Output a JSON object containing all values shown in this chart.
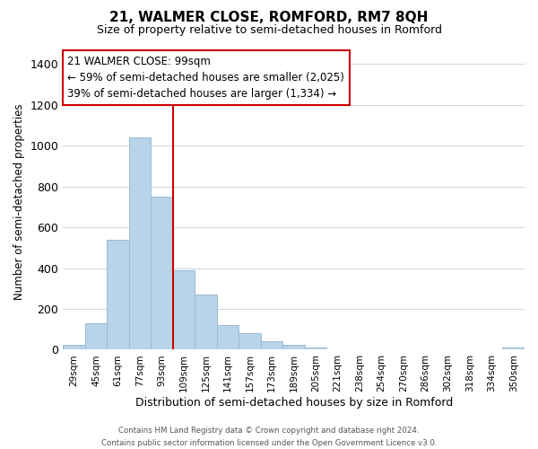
{
  "title": "21, WALMER CLOSE, ROMFORD, RM7 8QH",
  "subtitle": "Size of property relative to semi-detached houses in Romford",
  "xlabel": "Distribution of semi-detached houses by size in Romford",
  "ylabel": "Number of semi-detached properties",
  "bin_labels": [
    "29sqm",
    "45sqm",
    "61sqm",
    "77sqm",
    "93sqm",
    "109sqm",
    "125sqm",
    "141sqm",
    "157sqm",
    "173sqm",
    "189sqm",
    "205sqm",
    "221sqm",
    "238sqm",
    "254sqm",
    "270sqm",
    "286sqm",
    "302sqm",
    "318sqm",
    "334sqm",
    "350sqm"
  ],
  "bar_values": [
    25,
    130,
    540,
    1040,
    750,
    390,
    270,
    120,
    80,
    40,
    25,
    10,
    0,
    0,
    0,
    0,
    0,
    0,
    0,
    0,
    10
  ],
  "bar_color": "#b8d4e8",
  "bar_edge_color": "#9abcd4",
  "property_line_bin_index": 4,
  "property_line_color": "#cc0000",
  "annotation_title": "21 WALMER CLOSE: 99sqm",
  "annotation_line1": "← 59% of semi-detached houses are smaller (2,025)",
  "annotation_line2": "39% of semi-detached houses are larger (1,334) →",
  "annotation_box_color": "#ffffff",
  "annotation_box_edge": "#cc0000",
  "ylim": [
    0,
    1450
  ],
  "yticks": [
    0,
    200,
    400,
    600,
    800,
    1000,
    1200,
    1400
  ],
  "footer_line1": "Contains HM Land Registry data © Crown copyright and database right 2024.",
  "footer_line2": "Contains public sector information licensed under the Open Government Licence v3.0.",
  "background_color": "#ffffff",
  "grid_color": "#ccd9e4"
}
